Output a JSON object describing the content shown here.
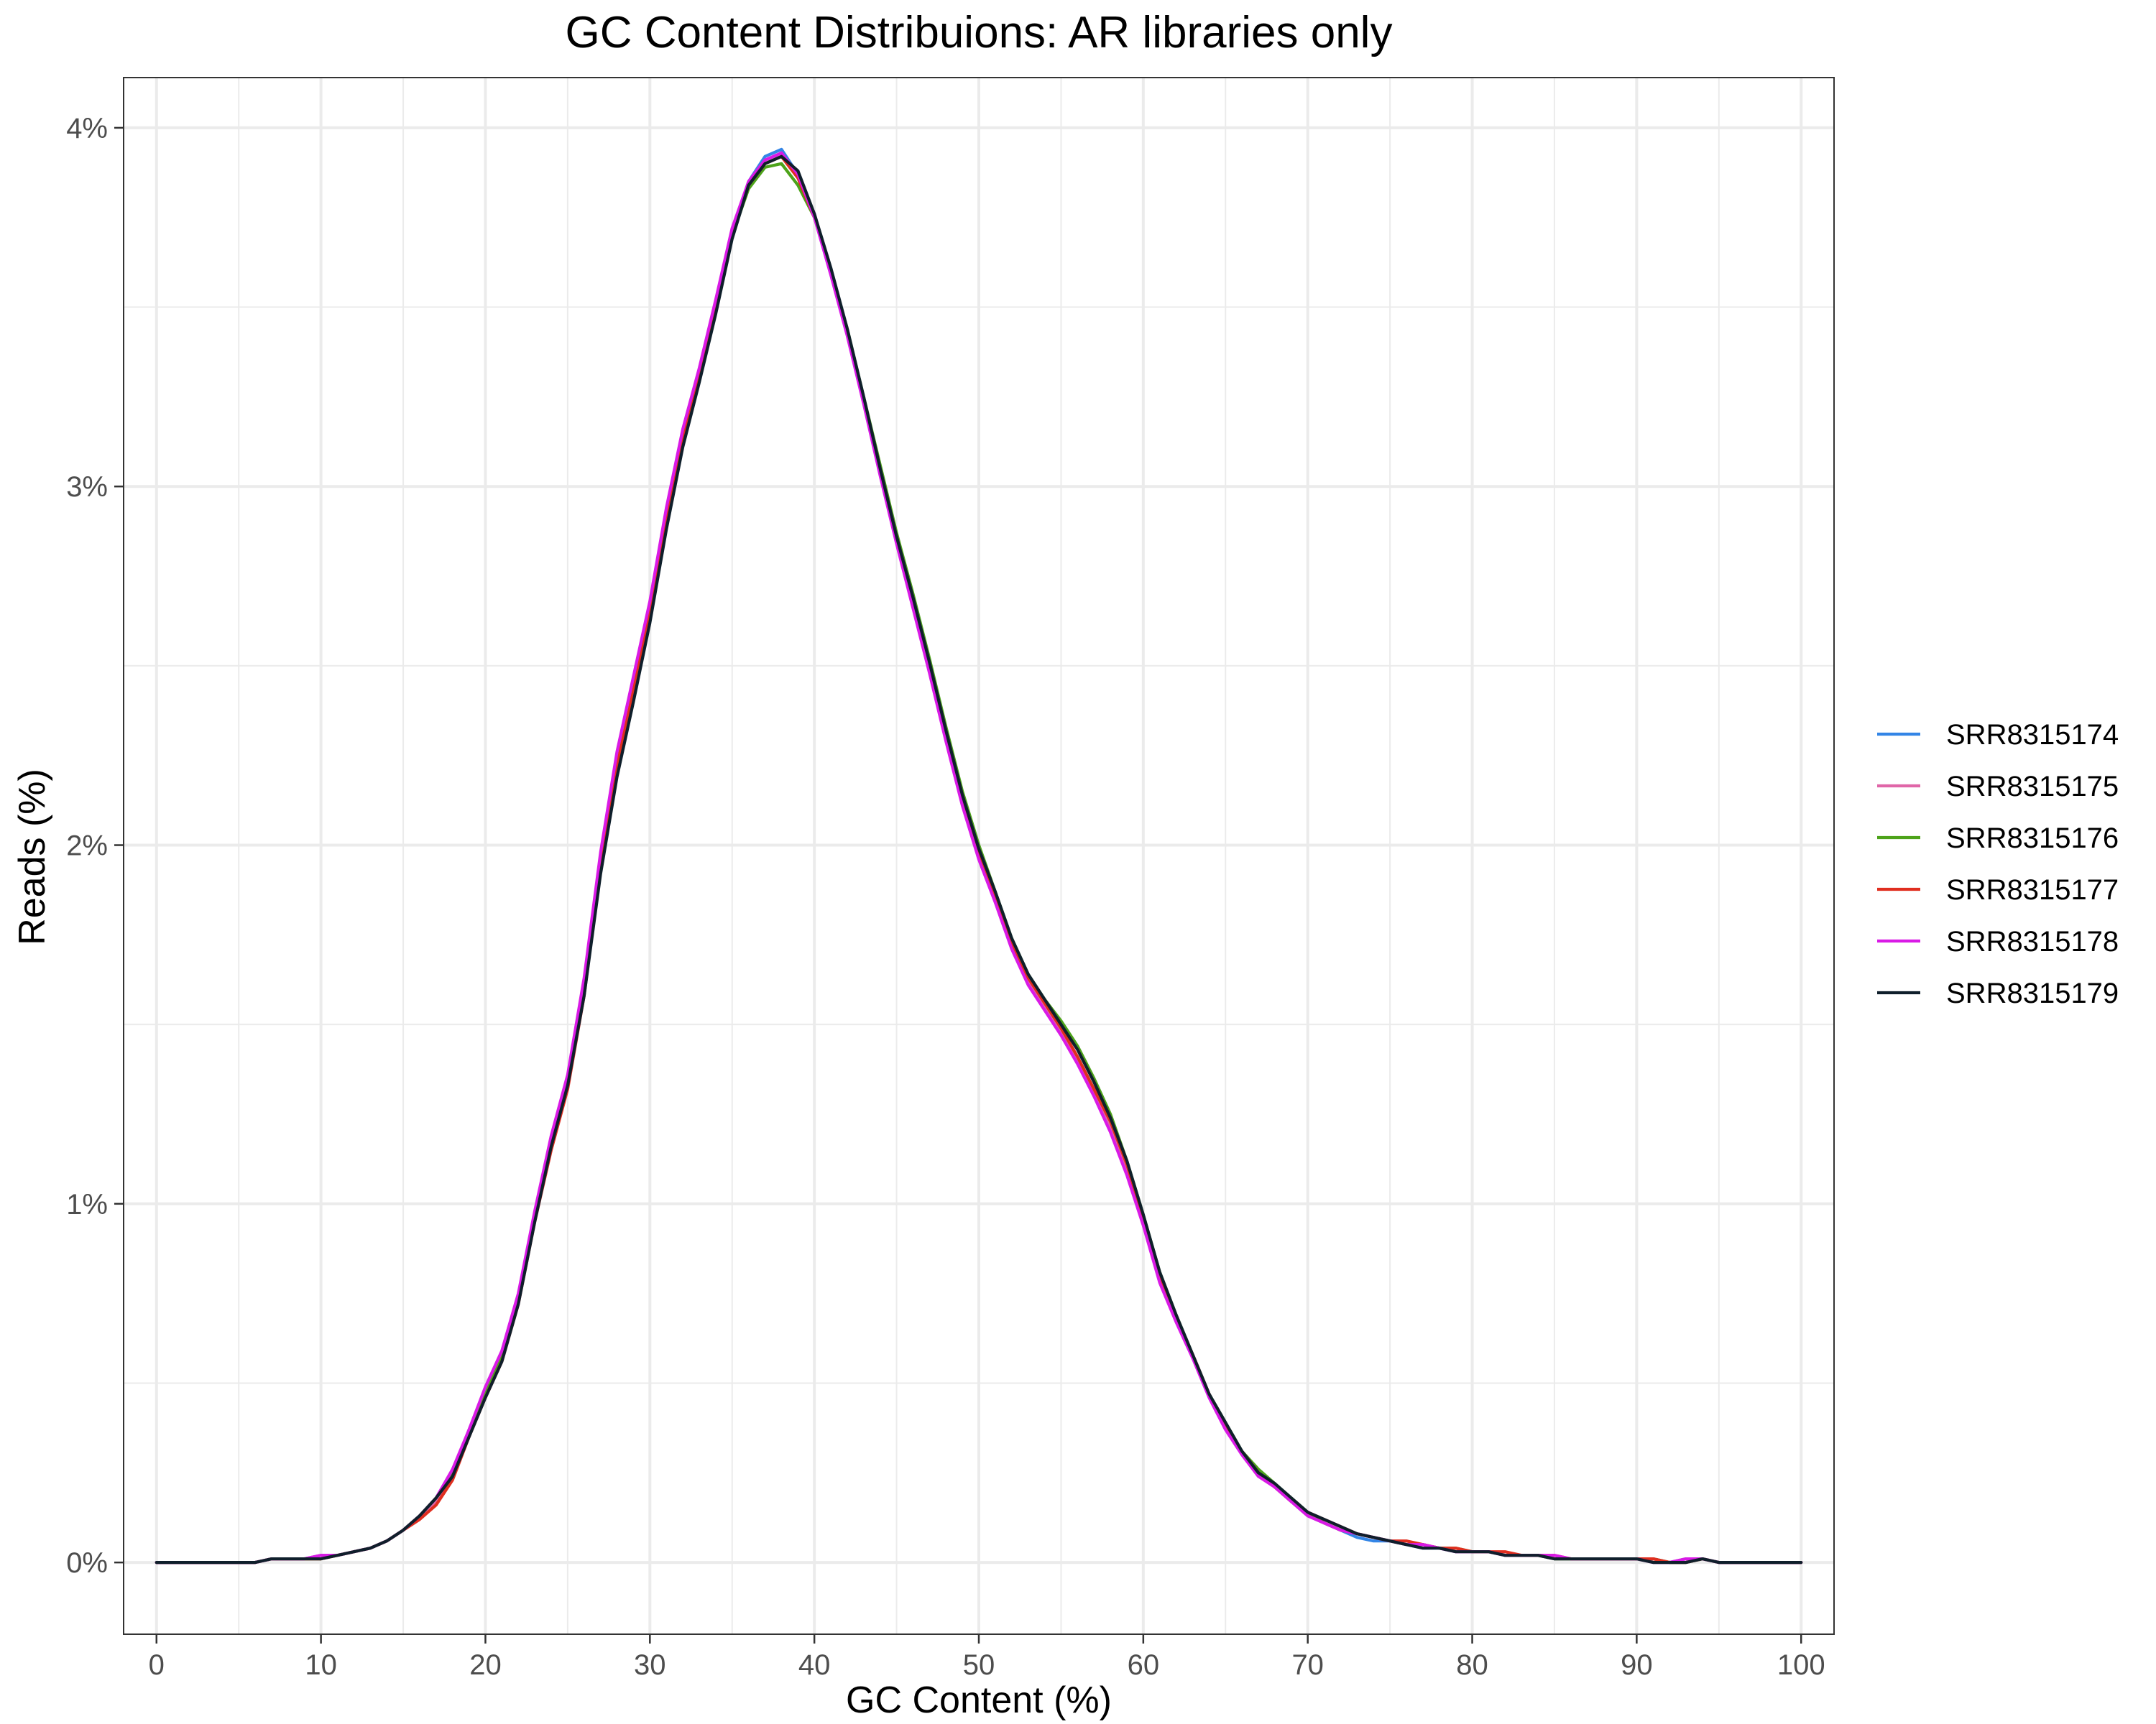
{
  "chart_data": {
    "type": "line",
    "title": "GC Content Distribuions: AR libraries only",
    "xlabel": "GC Content (%)",
    "ylabel": "Reads (%)",
    "xlim": [
      -2,
      102
    ],
    "ylim": [
      -0.2,
      4.14
    ],
    "x_ticks": [
      0,
      10,
      20,
      30,
      40,
      50,
      60,
      70,
      80,
      90,
      100
    ],
    "y_ticks": [
      0,
      1,
      2,
      3,
      4
    ],
    "y_tick_labels": [
      "0%",
      "1%",
      "2%",
      "3%",
      "4%"
    ],
    "grid": true,
    "legend_position": "right",
    "x": [
      0,
      1,
      2,
      3,
      4,
      5,
      6,
      7,
      8,
      9,
      10,
      11,
      12,
      13,
      14,
      15,
      16,
      17,
      18,
      19,
      20,
      21,
      22,
      23,
      24,
      25,
      26,
      27,
      28,
      29,
      30,
      31,
      32,
      33,
      34,
      35,
      36,
      37,
      38,
      39,
      40,
      41,
      42,
      43,
      44,
      45,
      46,
      47,
      48,
      49,
      50,
      51,
      52,
      53,
      54,
      55,
      56,
      57,
      58,
      59,
      60,
      61,
      62,
      63,
      64,
      65,
      66,
      67,
      68,
      69,
      70,
      71,
      72,
      73,
      74,
      75,
      76,
      77,
      78,
      79,
      80,
      81,
      82,
      83,
      84,
      85,
      86,
      87,
      88,
      89,
      90,
      91,
      92,
      93,
      94,
      95,
      96,
      97,
      98,
      99,
      100
    ],
    "series": [
      {
        "name": "SRR8315174",
        "color": "#3385e6",
        "values": [
          0,
          0,
          0,
          0,
          0,
          0,
          0,
          0.01,
          0.01,
          0.01,
          0.02,
          0.02,
          0.03,
          0.04,
          0.06,
          0.09,
          0.13,
          0.17,
          0.25,
          0.37,
          0.48,
          0.58,
          0.74,
          0.97,
          1.18,
          1.35,
          1.62,
          1.97,
          2.25,
          2.46,
          2.67,
          2.93,
          3.15,
          3.32,
          3.51,
          3.71,
          3.85,
          3.92,
          3.94,
          3.87,
          3.76,
          3.6,
          3.43,
          3.24,
          3.04,
          2.85,
          2.68,
          2.5,
          2.31,
          2.13,
          1.98,
          1.85,
          1.72,
          1.62,
          1.55,
          1.48,
          1.4,
          1.31,
          1.22,
          1.1,
          0.95,
          0.79,
          0.68,
          0.58,
          0.47,
          0.38,
          0.31,
          0.25,
          0.21,
          0.17,
          0.13,
          0.11,
          0.09,
          0.07,
          0.06,
          0.06,
          0.05,
          0.04,
          0.04,
          0.03,
          0.03,
          0.03,
          0.02,
          0.02,
          0.02,
          0.01,
          0.01,
          0.01,
          0.01,
          0.01,
          0.01,
          0.01,
          0,
          0.01,
          0.01,
          0,
          0,
          0,
          0,
          0,
          0
        ]
      },
      {
        "name": "SRR8315175",
        "color": "#e066a8",
        "values": [
          0,
          0,
          0,
          0,
          0,
          0,
          0,
          0.01,
          0.01,
          0.01,
          0.02,
          0.02,
          0.03,
          0.04,
          0.06,
          0.09,
          0.13,
          0.17,
          0.25,
          0.37,
          0.48,
          0.58,
          0.74,
          0.97,
          1.18,
          1.35,
          1.62,
          1.97,
          2.25,
          2.46,
          2.67,
          2.93,
          3.15,
          3.32,
          3.51,
          3.71,
          3.85,
          3.91,
          3.93,
          3.87,
          3.76,
          3.6,
          3.43,
          3.24,
          3.04,
          2.85,
          2.68,
          2.5,
          2.31,
          2.13,
          1.98,
          1.85,
          1.72,
          1.62,
          1.55,
          1.48,
          1.4,
          1.31,
          1.22,
          1.1,
          0.95,
          0.79,
          0.68,
          0.58,
          0.47,
          0.38,
          0.31,
          0.25,
          0.21,
          0.17,
          0.13,
          0.11,
          0.09,
          0.08,
          0.07,
          0.06,
          0.05,
          0.05,
          0.04,
          0.03,
          0.03,
          0.03,
          0.02,
          0.02,
          0.02,
          0.01,
          0.01,
          0.01,
          0.01,
          0.01,
          0.01,
          0.01,
          0,
          0.01,
          0.01,
          0,
          0,
          0,
          0,
          0,
          0
        ]
      },
      {
        "name": "SRR8315176",
        "color": "#4da31a",
        "values": [
          0,
          0,
          0,
          0,
          0,
          0,
          0,
          0.01,
          0.01,
          0.01,
          0.01,
          0.02,
          0.03,
          0.04,
          0.06,
          0.09,
          0.13,
          0.18,
          0.25,
          0.36,
          0.47,
          0.57,
          0.73,
          0.96,
          1.17,
          1.34,
          1.6,
          1.94,
          2.22,
          2.42,
          2.64,
          2.9,
          3.13,
          3.31,
          3.5,
          3.7,
          3.83,
          3.89,
          3.9,
          3.84,
          3.75,
          3.6,
          3.44,
          3.25,
          3.06,
          2.87,
          2.7,
          2.52,
          2.33,
          2.15,
          2.0,
          1.87,
          1.74,
          1.64,
          1.57,
          1.51,
          1.44,
          1.35,
          1.25,
          1.12,
          0.97,
          0.81,
          0.69,
          0.58,
          0.47,
          0.39,
          0.31,
          0.26,
          0.22,
          0.18,
          0.14,
          0.11,
          0.09,
          0.08,
          0.07,
          0.06,
          0.05,
          0.05,
          0.04,
          0.04,
          0.03,
          0.03,
          0.02,
          0.02,
          0.02,
          0.01,
          0.01,
          0.01,
          0.01,
          0.01,
          0.01,
          0.01,
          0,
          0,
          0.01,
          0,
          0,
          0,
          0,
          0,
          0
        ]
      },
      {
        "name": "SRR8315177",
        "color": "#e02e1f",
        "values": [
          0,
          0,
          0,
          0,
          0,
          0,
          0,
          0.01,
          0.01,
          0.01,
          0.01,
          0.02,
          0.03,
          0.04,
          0.06,
          0.09,
          0.12,
          0.16,
          0.23,
          0.35,
          0.46,
          0.56,
          0.72,
          0.95,
          1.15,
          1.32,
          1.58,
          1.94,
          2.22,
          2.43,
          2.65,
          2.91,
          3.13,
          3.31,
          3.5,
          3.7,
          3.84,
          3.9,
          3.92,
          3.86,
          3.75,
          3.6,
          3.43,
          3.24,
          3.04,
          2.85,
          2.68,
          2.5,
          2.31,
          2.13,
          1.98,
          1.85,
          1.73,
          1.63,
          1.56,
          1.49,
          1.41,
          1.32,
          1.23,
          1.11,
          0.96,
          0.8,
          0.68,
          0.58,
          0.47,
          0.38,
          0.31,
          0.25,
          0.21,
          0.17,
          0.14,
          0.12,
          0.1,
          0.08,
          0.07,
          0.06,
          0.06,
          0.05,
          0.04,
          0.04,
          0.03,
          0.03,
          0.03,
          0.02,
          0.02,
          0.02,
          0.01,
          0.01,
          0.01,
          0.01,
          0.01,
          0.01,
          0,
          0,
          0.01,
          0,
          0,
          0,
          0,
          0,
          0
        ]
      },
      {
        "name": "SRR8315178",
        "color": "#d91ae6",
        "values": [
          0,
          0,
          0,
          0,
          0,
          0,
          0,
          0.01,
          0.01,
          0.01,
          0.02,
          0.02,
          0.03,
          0.04,
          0.06,
          0.09,
          0.13,
          0.18,
          0.26,
          0.37,
          0.49,
          0.59,
          0.75,
          0.98,
          1.19,
          1.36,
          1.63,
          1.98,
          2.26,
          2.47,
          2.68,
          2.94,
          3.16,
          3.33,
          3.52,
          3.72,
          3.85,
          3.91,
          3.93,
          3.87,
          3.75,
          3.59,
          3.42,
          3.23,
          3.03,
          2.84,
          2.66,
          2.48,
          2.29,
          2.11,
          1.96,
          1.84,
          1.71,
          1.61,
          1.54,
          1.47,
          1.39,
          1.3,
          1.2,
          1.08,
          0.94,
          0.78,
          0.67,
          0.57,
          0.46,
          0.37,
          0.3,
          0.24,
          0.21,
          0.17,
          0.13,
          0.11,
          0.09,
          0.08,
          0.07,
          0.06,
          0.05,
          0.05,
          0.04,
          0.03,
          0.03,
          0.03,
          0.02,
          0.02,
          0.02,
          0.02,
          0.01,
          0.01,
          0.01,
          0.01,
          0.01,
          0,
          0,
          0.01,
          0.01,
          0,
          0,
          0,
          0,
          0,
          0
        ]
      },
      {
        "name": "SRR8315179",
        "color": "#0f1f2b",
        "values": [
          0,
          0,
          0,
          0,
          0,
          0,
          0,
          0.01,
          0.01,
          0.01,
          0.01,
          0.02,
          0.03,
          0.04,
          0.06,
          0.09,
          0.13,
          0.18,
          0.24,
          0.35,
          0.46,
          0.56,
          0.72,
          0.95,
          1.16,
          1.33,
          1.58,
          1.92,
          2.19,
          2.4,
          2.62,
          2.88,
          3.11,
          3.29,
          3.48,
          3.69,
          3.84,
          3.9,
          3.92,
          3.88,
          3.76,
          3.61,
          3.44,
          3.25,
          3.05,
          2.86,
          2.69,
          2.51,
          2.32,
          2.14,
          1.99,
          1.87,
          1.74,
          1.64,
          1.57,
          1.5,
          1.43,
          1.34,
          1.24,
          1.12,
          0.97,
          0.81,
          0.69,
          0.58,
          0.47,
          0.39,
          0.31,
          0.25,
          0.22,
          0.18,
          0.14,
          0.12,
          0.1,
          0.08,
          0.07,
          0.06,
          0.05,
          0.04,
          0.04,
          0.03,
          0.03,
          0.03,
          0.02,
          0.02,
          0.02,
          0.01,
          0.01,
          0.01,
          0.01,
          0.01,
          0.01,
          0,
          0,
          0,
          0.01,
          0,
          0,
          0,
          0,
          0,
          0
        ]
      }
    ]
  }
}
